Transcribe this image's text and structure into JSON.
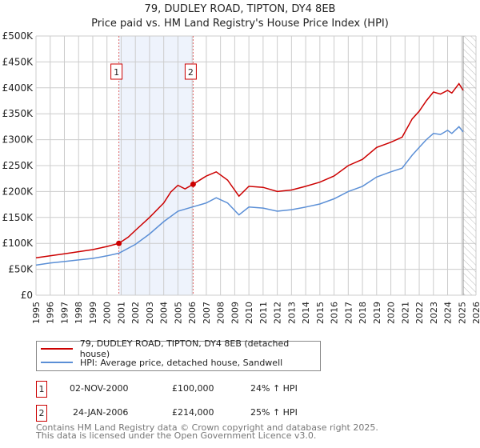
{
  "chart_data": {
    "type": "line",
    "title": "79, DUDLEY ROAD, TIPTON, DY4 8EB",
    "subtitle": "Price paid vs. HM Land Registry's House Price Index (HPI)",
    "xlabel": "",
    "ylabel": "",
    "xlim": [
      1995,
      2026
    ],
    "ylim": [
      0,
      500000
    ],
    "y_ticks": [
      "£0",
      "£50K",
      "£100K",
      "£150K",
      "£200K",
      "£250K",
      "£300K",
      "£350K",
      "£400K",
      "£450K",
      "£500K"
    ],
    "x_ticks": [
      "1995",
      "1996",
      "1997",
      "1998",
      "1999",
      "2000",
      "2001",
      "2002",
      "2003",
      "2004",
      "2005",
      "2006",
      "2007",
      "2008",
      "2009",
      "2010",
      "2011",
      "2012",
      "2013",
      "2014",
      "2015",
      "2016",
      "2017",
      "2018",
      "2019",
      "2020",
      "2021",
      "2022",
      "2023",
      "2024",
      "2025",
      "2026"
    ],
    "grid": true,
    "shaded_period": [
      2000.84,
      2006.07
    ],
    "hatched_from": 2025.1,
    "series": [
      {
        "name": "79, DUDLEY ROAD, TIPTON, DY4 8EB (detached house)",
        "color": "#cc0000",
        "x": [
          1995,
          1996,
          1997,
          1998,
          1999,
          2000,
          2000.84,
          2001.5,
          2002,
          2003,
          2004,
          2004.5,
          2005,
          2005.5,
          2006.07,
          2007,
          2007.7,
          2008.5,
          2009.3,
          2010,
          2011,
          2012,
          2013,
          2014,
          2015,
          2016,
          2017,
          2018,
          2019,
          2020,
          2020.8,
          2021.5,
          2022,
          2022.5,
          2023,
          2023.5,
          2024,
          2024.3,
          2024.8,
          2025.1
        ],
        "y": [
          72000,
          76000,
          80000,
          84000,
          88000,
          94000,
          100000,
          112000,
          125000,
          150000,
          178000,
          199000,
          212000,
          205000,
          214000,
          230000,
          238000,
          222000,
          191000,
          210000,
          208000,
          200000,
          203000,
          210000,
          218000,
          230000,
          250000,
          262000,
          285000,
          295000,
          305000,
          340000,
          355000,
          375000,
          392000,
          388000,
          395000,
          390000,
          408000,
          395000
        ]
      },
      {
        "name": "HPI: Average price, detached house, Sandwell",
        "color": "#5b8fd6",
        "x": [
          1995,
          1996,
          1997,
          1998,
          1999,
          2000,
          2000.84,
          2002,
          2003,
          2004,
          2005,
          2006,
          2007,
          2007.7,
          2008.5,
          2009.3,
          2010,
          2011,
          2012,
          2013,
          2014,
          2015,
          2016,
          2017,
          2018,
          2019,
          2020,
          2020.8,
          2021.5,
          2022,
          2022.5,
          2023,
          2023.5,
          2024,
          2024.3,
          2024.8,
          2025.1
        ],
        "y": [
          58000,
          62000,
          65000,
          68000,
          71000,
          76000,
          81000,
          98000,
          118000,
          142000,
          162000,
          170000,
          178000,
          188000,
          178000,
          155000,
          170000,
          168000,
          162000,
          165000,
          170000,
          176000,
          186000,
          200000,
          210000,
          228000,
          238000,
          245000,
          270000,
          285000,
          300000,
          312000,
          310000,
          318000,
          312000,
          325000,
          315000
        ]
      }
    ],
    "annotations": [
      {
        "label": "1",
        "x": 2000.84,
        "y": 100000
      },
      {
        "label": "2",
        "x": 2006.07,
        "y": 214000
      }
    ]
  },
  "sales": [
    {
      "label": "1",
      "date": "02-NOV-2000",
      "price": "£100,000",
      "hpi": "24% ↑ HPI"
    },
    {
      "label": "2",
      "date": "24-JAN-2006",
      "price": "£214,000",
      "hpi": "25% ↑ HPI"
    }
  ],
  "footer": {
    "line1": "Contains HM Land Registry data © Crown copyright and database right 2025.",
    "line2": "This data is licensed under the Open Government Licence v3.0."
  }
}
